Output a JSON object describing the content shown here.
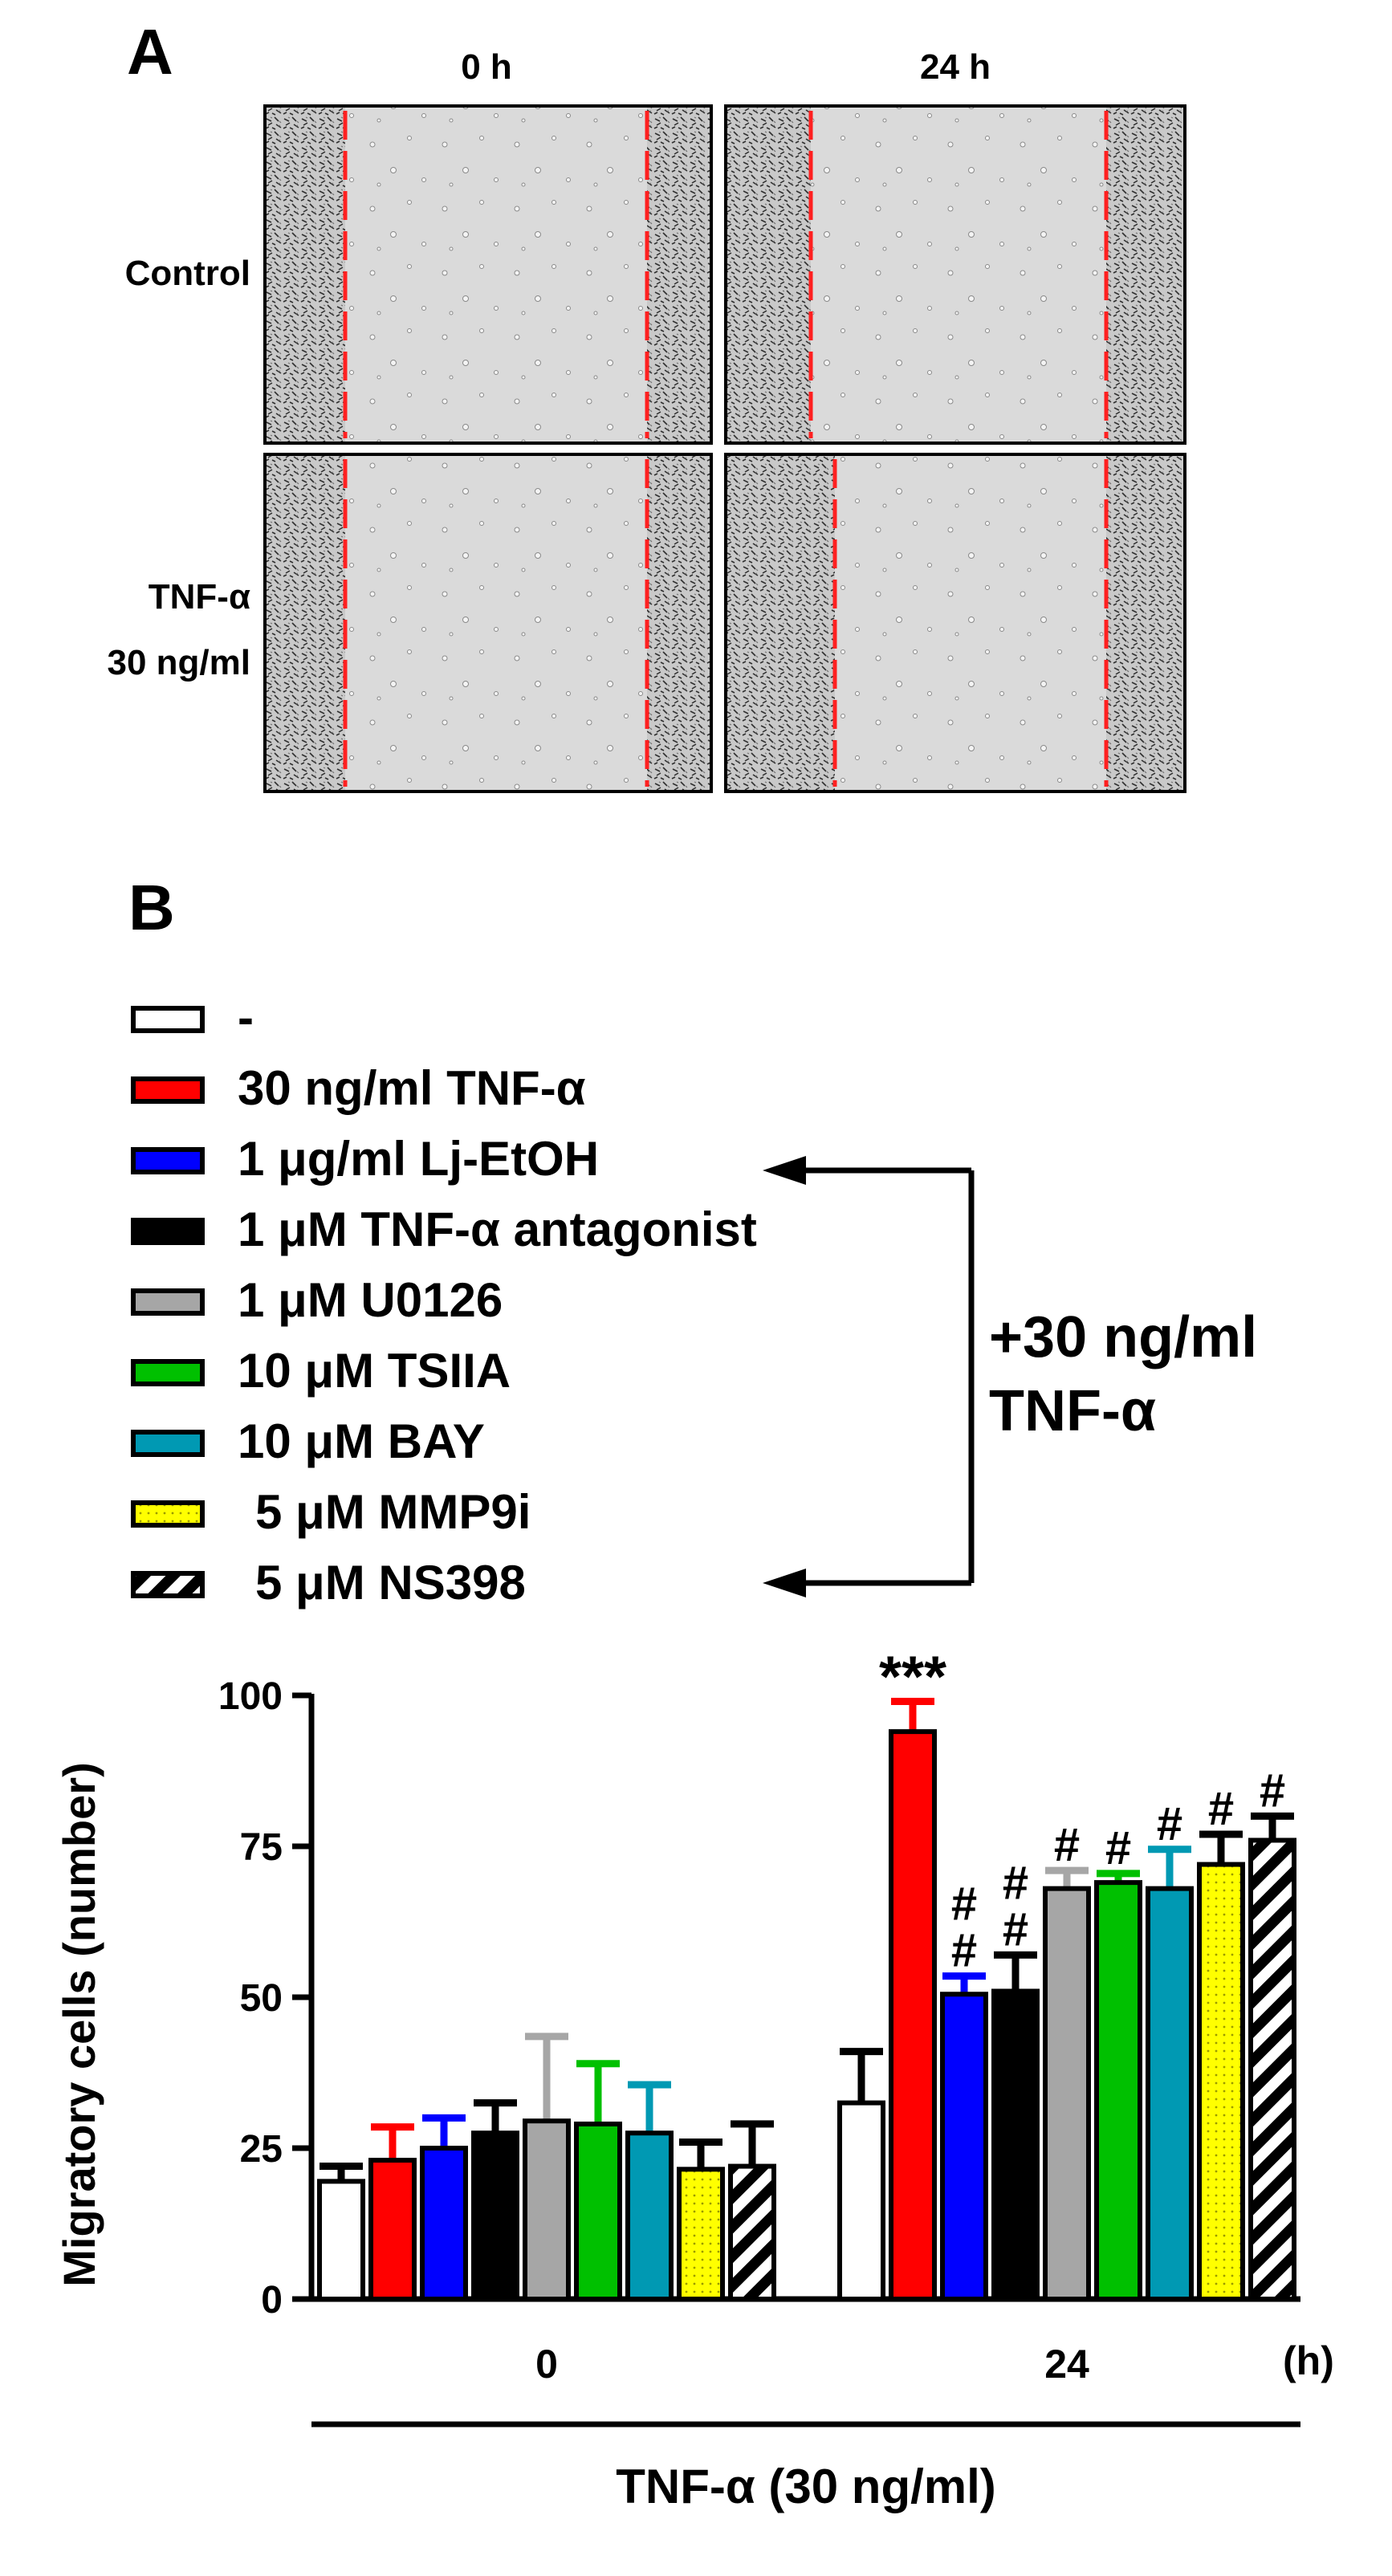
{
  "panel_a": {
    "label": "A",
    "col_labels": [
      "0 h",
      "24 h"
    ],
    "row_labels": [
      "Control",
      "TNF-α",
      "30 ng/ml"
    ]
  },
  "panel_b": {
    "label": "B"
  },
  "legend": {
    "items": [
      {
        "label": "-",
        "fill": "#ffffff",
        "pattern": "none"
      },
      {
        "label": "30 ng/ml TNF-α",
        "fill": "#ff0000",
        "pattern": "none"
      },
      {
        "label": "1 μg/ml Lj-EtOH",
        "fill": "#0000ff",
        "pattern": "none"
      },
      {
        "label": "1 μM TNF-α antagonist",
        "fill": "#000000",
        "pattern": "none"
      },
      {
        "label": "1 μM U0126",
        "fill": "#a6a6a6",
        "pattern": "none"
      },
      {
        "label": "10 μM TSIIA",
        "fill": "#00c000",
        "pattern": "none"
      },
      {
        "label": "10 μM BAY",
        "fill": "#0099b3",
        "pattern": "none"
      },
      {
        "label": "5 μM MMP9i",
        "fill": "#ffff00",
        "pattern": "dots"
      },
      {
        "label": "5 μM NS398",
        "fill": "#ffffff",
        "pattern": "stripes"
      }
    ],
    "bracket_label_1": "+30 ng/ml",
    "bracket_label_2": "TNF-α"
  },
  "chart_data": {
    "type": "bar",
    "ylabel": "Migratory cells (number)",
    "xlabel": "TNF-α (30 ng/ml)",
    "x_unit": "(h)",
    "categories": [
      "0",
      "24"
    ],
    "ylim": [
      0,
      100
    ],
    "yticks": [
      0,
      25,
      50,
      75,
      100
    ],
    "series": [
      {
        "name": "-",
        "values": [
          19.5,
          32.5
        ],
        "errors": [
          2.5,
          8.5
        ]
      },
      {
        "name": "30 ng/ml TNF-α",
        "values": [
          23,
          94
        ],
        "errors": [
          5.5,
          5
        ]
      },
      {
        "name": "1 μg/ml Lj-EtOH",
        "values": [
          25,
          50.5
        ],
        "errors": [
          5,
          3
        ]
      },
      {
        "name": "1 μM TNF-α antagonist",
        "values": [
          27.5,
          51
        ],
        "errors": [
          5,
          6
        ]
      },
      {
        "name": "1 μM U0126",
        "values": [
          29.5,
          68
        ],
        "errors": [
          14,
          3
        ]
      },
      {
        "name": "10 μM TSIIA",
        "values": [
          29,
          69
        ],
        "errors": [
          10,
          1.5
        ]
      },
      {
        "name": "10 μM BAY",
        "values": [
          27.5,
          68
        ],
        "errors": [
          8,
          6.5
        ]
      },
      {
        "name": "5 μM MMP9i",
        "values": [
          21.5,
          72
        ],
        "errors": [
          4.5,
          5
        ]
      },
      {
        "name": "5 μM NS398",
        "values": [
          22,
          76
        ],
        "errors": [
          7,
          4
        ]
      }
    ],
    "annotations": [
      {
        "category": "24",
        "series": 1,
        "text": "***"
      },
      {
        "category": "24",
        "series": 2,
        "text": "#",
        "second": "#"
      },
      {
        "category": "24",
        "series": 3,
        "text": "#",
        "second": "#"
      },
      {
        "category": "24",
        "series": 4,
        "text": "#"
      },
      {
        "category": "24",
        "series": 5,
        "text": "#"
      },
      {
        "category": "24",
        "series": 6,
        "text": "#"
      },
      {
        "category": "24",
        "series": 7,
        "text": "#"
      },
      {
        "category": "24",
        "series": 8,
        "text": "#"
      }
    ]
  }
}
